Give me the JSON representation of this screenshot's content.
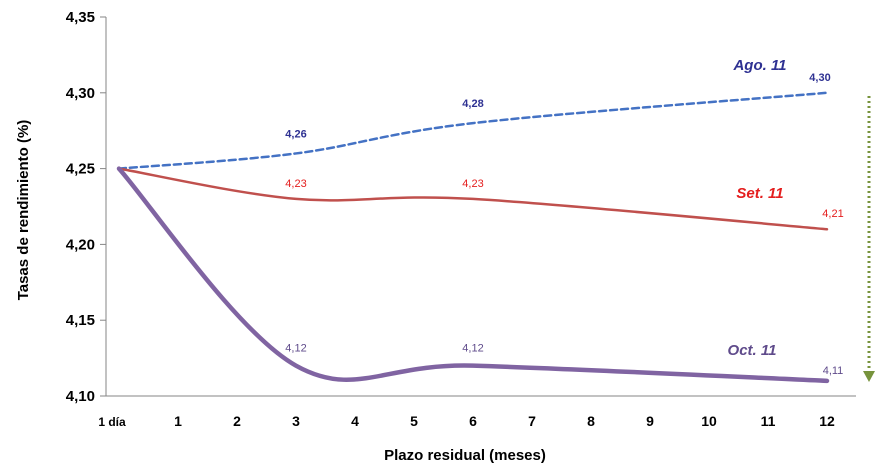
{
  "chart_data": {
    "type": "line",
    "xlabel": "Plazo residual (meses)",
    "ylabel": "Tasas de rendimiento (%)",
    "x_categories": [
      "1 día",
      "1",
      "2",
      "3",
      "4",
      "5",
      "6",
      "7",
      "8",
      "9",
      "10",
      "11",
      "12"
    ],
    "ylim": [
      4.1,
      4.35
    ],
    "y_ticks": [
      "4,10",
      "4,15",
      "4,20",
      "4,25",
      "4,30",
      "4,35"
    ],
    "y_tick_values": [
      4.1,
      4.15,
      4.2,
      4.25,
      4.3,
      4.35
    ],
    "grid": false,
    "series": [
      {
        "name": "Ago. 11",
        "color": "#4472C4",
        "label_color": "#2E3192",
        "dashed": true,
        "x": [
          0,
          3,
          6,
          12
        ],
        "values": [
          4.25,
          4.26,
          4.28,
          4.3
        ],
        "labels": [
          "4,26",
          "4,28",
          "4,30"
        ]
      },
      {
        "name": "Set. 11",
        "color": "#C0504D",
        "label_color": "#E41E1E",
        "dashed": false,
        "x": [
          0,
          3,
          6,
          12
        ],
        "values": [
          4.25,
          4.23,
          4.23,
          4.21
        ],
        "labels": [
          "4,23",
          "4,23",
          "4,21"
        ]
      },
      {
        "name": "Oct. 11",
        "color": "#8064A2",
        "label_color": "#5F4B8B",
        "dashed": false,
        "x": [
          0,
          3,
          6,
          12
        ],
        "values": [
          4.25,
          4.12,
          4.12,
          4.11
        ],
        "labels": [
          "4,12",
          "4,12",
          "4,11"
        ]
      }
    ],
    "annotations": [
      "downward-trend-arrow"
    ]
  }
}
